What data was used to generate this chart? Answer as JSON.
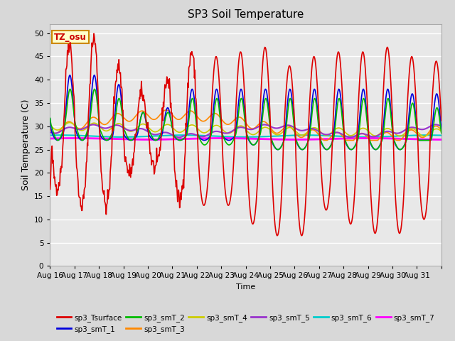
{
  "title": "SP3 Soil Temperature",
  "ylabel": "Soil Temperature (C)",
  "xlabel": "Time",
  "tz_label": "TZ_osu",
  "ylim": [
    0,
    52
  ],
  "yticks": [
    0,
    5,
    10,
    15,
    20,
    25,
    30,
    35,
    40,
    45,
    50
  ],
  "x_tick_labels": [
    "Aug 16",
    "Aug 17",
    "Aug 18",
    "Aug 19",
    "Aug 20",
    "Aug 21",
    "Aug 22",
    "Aug 23",
    "Aug 24",
    "Aug 25",
    "Aug 26",
    "Aug 27",
    "Aug 28",
    "Aug 29",
    "Aug 30",
    "Aug 31"
  ],
  "bg_color": "#d8d8d8",
  "plot_bg_color": "#e8e8e8",
  "series": {
    "sp3_Tsurface": {
      "color": "#dd0000",
      "lw": 1.2
    },
    "sp3_smT_1": {
      "color": "#0000dd",
      "lw": 1.2
    },
    "sp3_smT_2": {
      "color": "#00bb00",
      "lw": 1.2
    },
    "sp3_smT_3": {
      "color": "#ff8800",
      "lw": 1.2
    },
    "sp3_smT_4": {
      "color": "#cccc00",
      "lw": 1.2
    },
    "sp3_smT_5": {
      "color": "#9933cc",
      "lw": 1.5
    },
    "sp3_smT_6": {
      "color": "#00cccc",
      "lw": 1.5
    },
    "sp3_smT_7": {
      "color": "#ff00ff",
      "lw": 2.0
    }
  }
}
